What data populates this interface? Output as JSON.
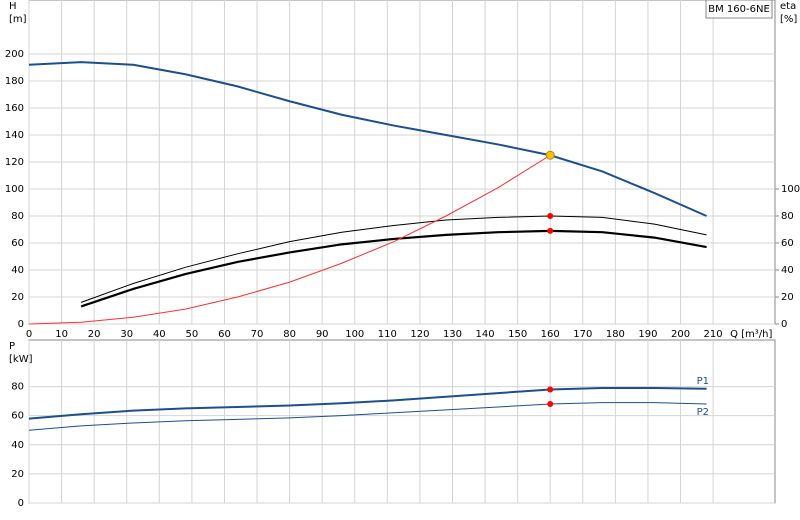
{
  "chart_data": [
    {
      "type": "line",
      "title": "BM 160-6NE",
      "ylabel": [
        "H",
        "[m]"
      ],
      "y2label": [
        "eta",
        "[%]"
      ],
      "xlabel": "Q [m³/h]",
      "xlim": [
        0,
        229
      ],
      "xticks": [
        0,
        10,
        20,
        30,
        40,
        50,
        60,
        70,
        80,
        90,
        100,
        110,
        120,
        130,
        140,
        150,
        160,
        170,
        180,
        190,
        200,
        210
      ],
      "show_xtick_labels": true,
      "ylim": [
        0,
        240
      ],
      "yticks": [
        0,
        20,
        40,
        60,
        80,
        100,
        120,
        140,
        160,
        180,
        200
      ],
      "y2lim": [
        0,
        240
      ],
      "y2ticks": [
        0,
        20,
        40,
        60,
        80,
        100
      ],
      "grid": true,
      "series": [
        {
          "color": "#1c4f8f",
          "width": 2,
          "x": [
            0,
            16,
            32,
            48,
            64,
            80,
            96,
            112,
            128,
            144,
            160,
            176,
            192,
            208
          ],
          "values": [
            192,
            194,
            192,
            185,
            176,
            165,
            155,
            147,
            140,
            133,
            125,
            113,
            97,
            80
          ]
        },
        {
          "color": "#000000",
          "width": 1,
          "axis": "y2",
          "x": [
            16,
            32,
            48,
            64,
            80,
            96,
            112,
            128,
            144,
            160,
            176,
            192,
            208
          ],
          "values": [
            16,
            30,
            42,
            52,
            61,
            68,
            73,
            77,
            79,
            80,
            79,
            74,
            66
          ]
        },
        {
          "color": "#000000",
          "width": 2.2,
          "axis": "y2",
          "x": [
            16,
            32,
            48,
            64,
            80,
            96,
            112,
            128,
            144,
            160,
            176,
            192,
            208
          ],
          "values": [
            13,
            26,
            37,
            46,
            53,
            59,
            63,
            66,
            68,
            69,
            68,
            64,
            57
          ]
        },
        {
          "color": "#ff3030",
          "width": 1,
          "x": [
            0,
            16,
            32,
            48,
            64,
            80,
            96,
            112,
            128,
            144,
            160
          ],
          "values": [
            0,
            1.3,
            5,
            11,
            20,
            31,
            45,
            61,
            80,
            101,
            125
          ]
        }
      ],
      "markers": [
        {
          "x": 160,
          "y": 125,
          "color": "#f5c400"
        },
        {
          "x": 160,
          "y": 80,
          "color": "#ff0000",
          "axis": "y2"
        },
        {
          "x": 160,
          "y": 69,
          "color": "#ff0000",
          "axis": "y2"
        }
      ]
    },
    {
      "type": "line",
      "ylabel": [
        "P",
        "[kW]"
      ],
      "xlim": [
        0,
        229
      ],
      "xticks": [
        0,
        10,
        20,
        30,
        40,
        50,
        60,
        70,
        80,
        90,
        100,
        110,
        120,
        130,
        140,
        150,
        160,
        170,
        180,
        190,
        200,
        210
      ],
      "show_xtick_labels": false,
      "ylim": [
        0,
        112
      ],
      "yticks": [
        0,
        20,
        40,
        60,
        80
      ],
      "grid": true,
      "series": [
        {
          "name": "P1",
          "color": "#1c4f8f",
          "width": 2,
          "x": [
            0,
            16,
            32,
            48,
            64,
            80,
            96,
            112,
            128,
            144,
            160,
            176,
            192,
            208
          ],
          "values": [
            58,
            61,
            63.5,
            65,
            66,
            67,
            68.5,
            70.5,
            73,
            75.5,
            78,
            79,
            79,
            78.5
          ]
        },
        {
          "name": "P2",
          "color": "#1c4f8f",
          "width": 1,
          "x": [
            0,
            16,
            32,
            48,
            64,
            80,
            96,
            112,
            128,
            144,
            160,
            176,
            192,
            208
          ],
          "values": [
            50,
            53,
            55,
            56.5,
            57.5,
            58.5,
            60,
            62,
            64,
            66,
            68,
            69,
            69,
            68
          ]
        }
      ],
      "markers": [
        {
          "x": 160,
          "y": 78,
          "color": "#ff0000"
        },
        {
          "x": 160,
          "y": 68,
          "color": "#ff0000"
        }
      ]
    }
  ]
}
